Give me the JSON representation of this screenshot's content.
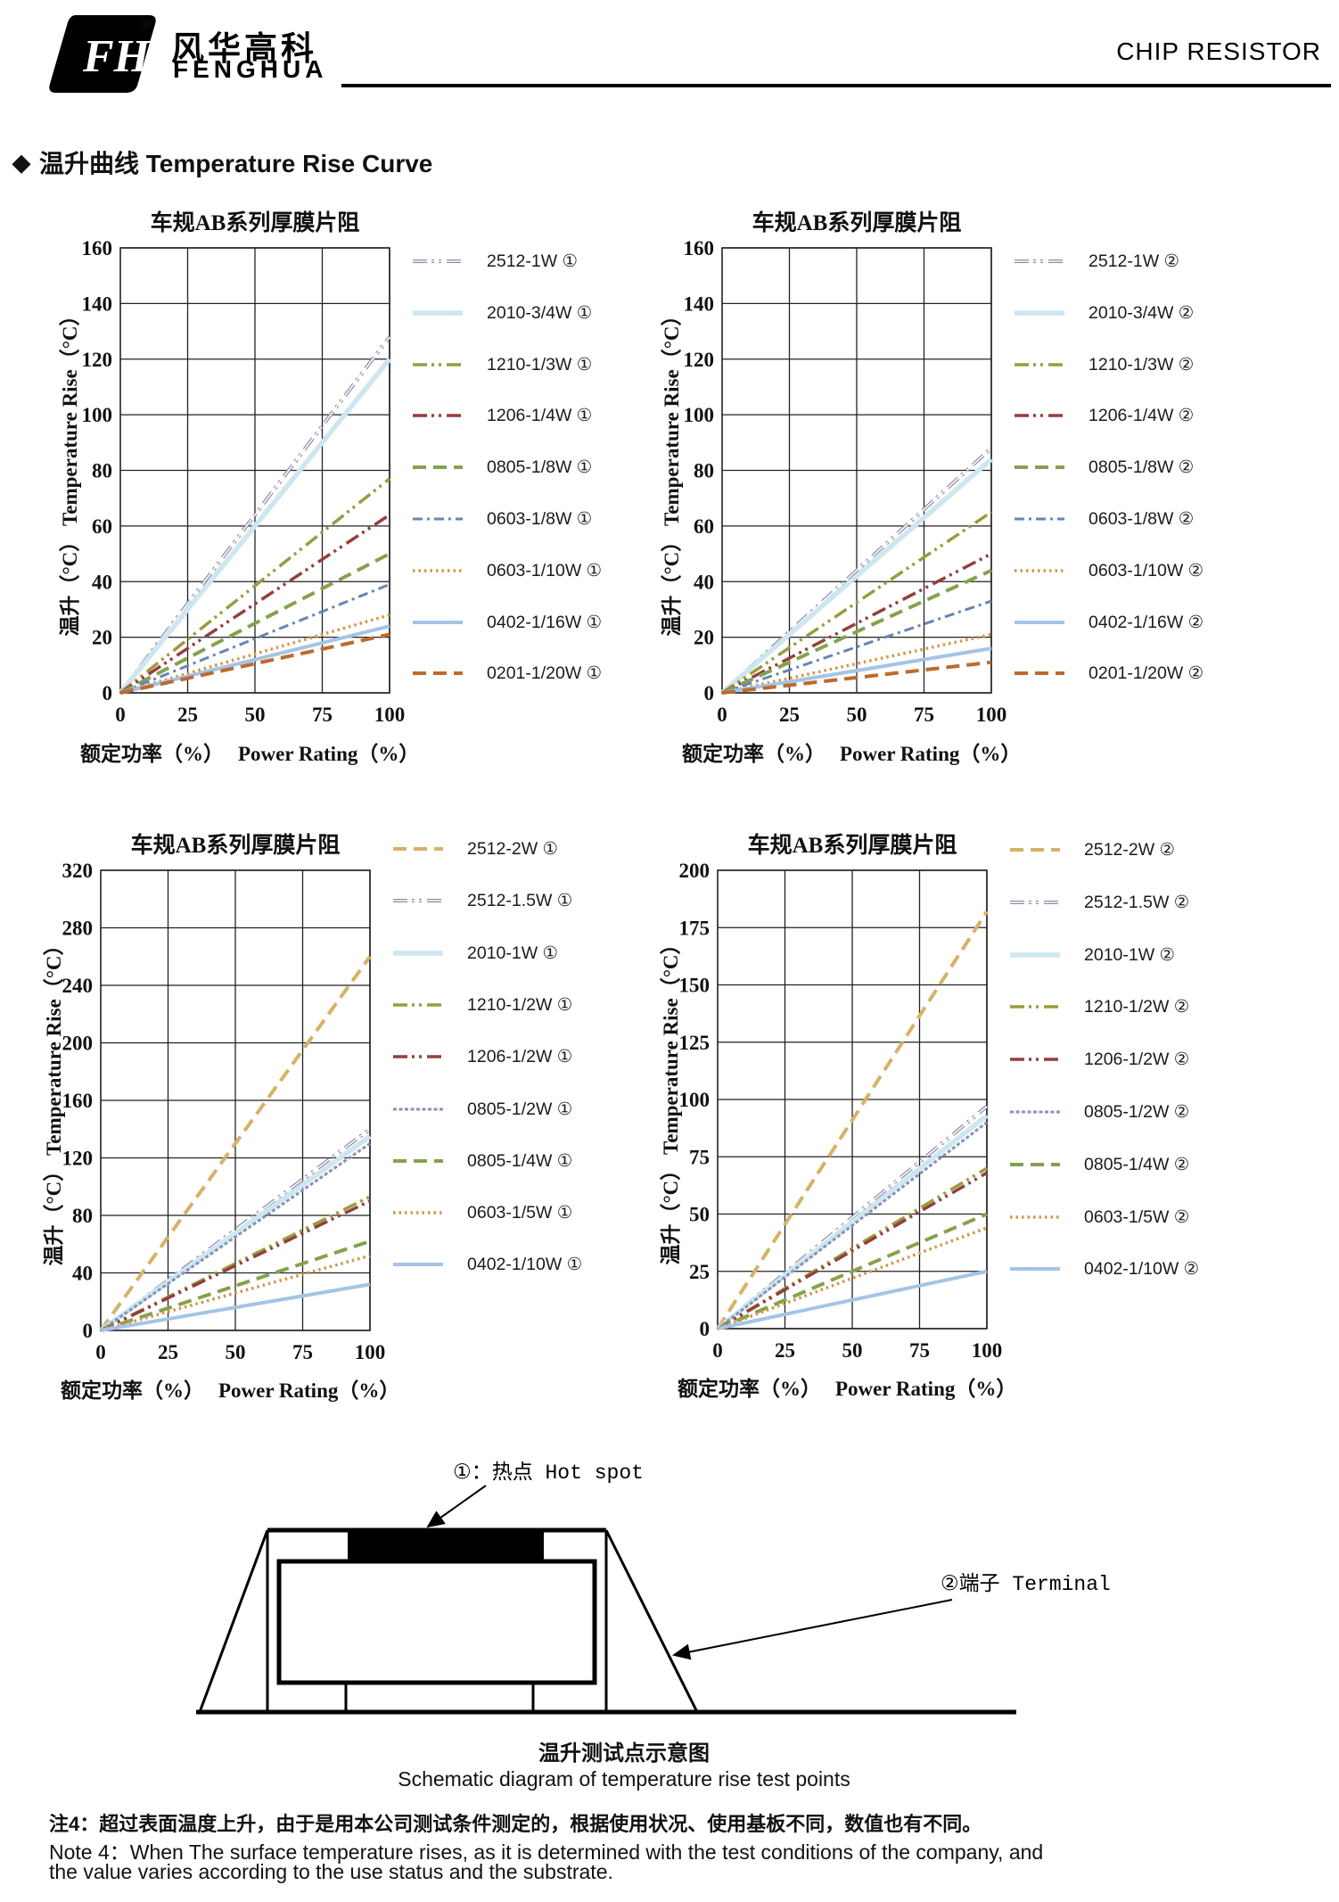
{
  "header": {
    "logo_monogram": "FH",
    "registered_mark": "®",
    "logo_cn": "风华高科",
    "logo_en": "FENGHUA",
    "doc_title": "CHIP RESISTOR"
  },
  "section": {
    "bullet": "◆",
    "title": "温升曲线 Temperature Rise Curve"
  },
  "chart_data": [
    {
      "type": "line",
      "title": "车规AB系列厚膜片阻",
      "xlabel_cn": "额定功率（%）",
      "xlabel_en": "Power Rating（%）",
      "ylabel": "温升（°C）  Temperature Rise（°C）",
      "x": [
        0,
        100
      ],
      "xticks": [
        "0",
        "25",
        "50",
        "75",
        "100"
      ],
      "yticks": [
        0,
        20,
        40,
        60,
        80,
        100,
        120,
        140,
        160
      ],
      "ylim": [
        0,
        160
      ],
      "grid": true,
      "legend_position": "right",
      "series": [
        {
          "name": "2512-1W ①",
          "color": "#8d8aa6",
          "style": "grayddd",
          "values": [
            0,
            128
          ]
        },
        {
          "name": "2010-3/4W ①",
          "color": "#cde6f0",
          "style": "pale",
          "values": [
            0,
            120
          ]
        },
        {
          "name": "1210-1/3W ①",
          "color": "#9b9b3f",
          "style": "ddd",
          "values": [
            0,
            77
          ]
        },
        {
          "name": "1206-1/4W ①",
          "color": "#943f3d",
          "style": "ddd",
          "values": [
            0,
            64
          ]
        },
        {
          "name": "0805-1/8W ①",
          "color": "#85a24b",
          "style": "dash",
          "values": [
            0,
            50
          ]
        },
        {
          "name": "0603-1/8W ①",
          "color": "#6486b8",
          "style": "dashdot",
          "values": [
            0,
            39
          ]
        },
        {
          "name": "0603-1/10W ①",
          "color": "#d3954a",
          "style": "dot",
          "values": [
            0,
            28
          ]
        },
        {
          "name": "0402-1/16W ①",
          "color": "#a5c4e6",
          "style": "solid",
          "values": [
            0,
            24
          ]
        },
        {
          "name": "0201-1/20W ①",
          "color": "#bd6a2e",
          "style": "dash",
          "values": [
            0,
            21
          ]
        }
      ]
    },
    {
      "type": "line",
      "title": "车规AB系列厚膜片阻",
      "xlabel_cn": "额定功率（%）",
      "xlabel_en": "Power Rating（%）",
      "ylabel": "温升（°C）  Temperature Rise（°C）",
      "x": [
        0,
        100
      ],
      "xticks": [
        "0",
        "25",
        "50",
        "75",
        "100"
      ],
      "yticks": [
        0,
        20,
        40,
        60,
        80,
        100,
        120,
        140,
        160
      ],
      "ylim": [
        0,
        160
      ],
      "grid": true,
      "legend_position": "right",
      "series": [
        {
          "name": "2512-1W ②",
          "color": "#8d8aa6",
          "style": "grayddd",
          "values": [
            0,
            88
          ]
        },
        {
          "name": "2010-3/4W ②",
          "color": "#cde6f0",
          "style": "pale",
          "values": [
            0,
            84
          ]
        },
        {
          "name": "1210-1/3W ②",
          "color": "#9b9b3f",
          "style": "ddd",
          "values": [
            0,
            65
          ]
        },
        {
          "name": "1206-1/4W ②",
          "color": "#943f3d",
          "style": "ddd",
          "values": [
            0,
            50
          ]
        },
        {
          "name": "0805-1/8W ②",
          "color": "#85a24b",
          "style": "dash",
          "values": [
            0,
            44
          ]
        },
        {
          "name": "0603-1/8W ②",
          "color": "#6486b8",
          "style": "dashdot",
          "values": [
            0,
            33
          ]
        },
        {
          "name": "0603-1/10W ②",
          "color": "#d3954a",
          "style": "dot",
          "values": [
            0,
            21
          ]
        },
        {
          "name": "0402-1/16W ②",
          "color": "#a5c4e6",
          "style": "solid",
          "values": [
            0,
            16
          ]
        },
        {
          "name": "0201-1/20W ②",
          "color": "#bd6a2e",
          "style": "dash",
          "values": [
            0,
            11
          ]
        }
      ]
    },
    {
      "type": "line",
      "title": "车规AB系列厚膜片阻",
      "xlabel_cn": "额定功率（%）",
      "xlabel_en": "Power Rating（%）",
      "ylabel": "温升（°C）  Temperature Rise（°C）",
      "x": [
        0,
        100
      ],
      "xticks": [
        "0",
        "25",
        "50",
        "75",
        "100"
      ],
      "yticks": [
        0,
        40,
        80,
        120,
        160,
        200,
        240,
        280,
        320
      ],
      "ylim": [
        0,
        320
      ],
      "grid": true,
      "legend_position": "right",
      "series": [
        {
          "name": "2512-2W ①",
          "color": "#d6b267",
          "style": "dash",
          "values": [
            0,
            260
          ]
        },
        {
          "name": "2512-1.5W ①",
          "color": "#8d8aa6",
          "style": "grayddd",
          "values": [
            0,
            140
          ]
        },
        {
          "name": "2010-1W ①",
          "color": "#cde6f0",
          "style": "pale",
          "values": [
            0,
            135
          ]
        },
        {
          "name": "1210-1/2W ①",
          "color": "#9b9b3f",
          "style": "ddd",
          "values": [
            0,
            93
          ]
        },
        {
          "name": "1206-1/2W ①",
          "color": "#943f3d",
          "style": "ddd",
          "values": [
            0,
            90
          ]
        },
        {
          "name": "0805-1/2W ①",
          "color": "#8493ba",
          "style": "densedot",
          "values": [
            0,
            130
          ]
        },
        {
          "name": "0805-1/4W ①",
          "color": "#85a24b",
          "style": "dash",
          "values": [
            0,
            62
          ]
        },
        {
          "name": "0603-1/5W ①",
          "color": "#d3954a",
          "style": "dot",
          "values": [
            0,
            52
          ]
        },
        {
          "name": "0402-1/10W ①",
          "color": "#a5c4e6",
          "style": "solid",
          "values": [
            0,
            32
          ]
        }
      ]
    },
    {
      "type": "line",
      "title": "车规AB系列厚膜片阻",
      "xlabel_cn": "额定功率（%）",
      "xlabel_en": "Power Rating（%）",
      "ylabel": "温升（°C）  Temperature Rise（°C）",
      "x": [
        0,
        100
      ],
      "xticks": [
        "0",
        "25",
        "50",
        "75",
        "100"
      ],
      "yticks": [
        0,
        25,
        50,
        75,
        100,
        125,
        150,
        175,
        200
      ],
      "ylim": [
        0,
        200
      ],
      "grid": true,
      "legend_position": "right",
      "series": [
        {
          "name": "2512-2W ②",
          "color": "#d6b267",
          "style": "dash",
          "values": [
            0,
            182
          ]
        },
        {
          "name": "2512-1.5W ②",
          "color": "#8d8aa6",
          "style": "grayddd",
          "values": [
            0,
            97
          ]
        },
        {
          "name": "2010-1W ②",
          "color": "#cde6f0",
          "style": "pale",
          "values": [
            0,
            93
          ]
        },
        {
          "name": "1210-1/2W ②",
          "color": "#9b9b3f",
          "style": "ddd",
          "values": [
            0,
            70
          ]
        },
        {
          "name": "1206-1/2W ②",
          "color": "#943f3d",
          "style": "ddd",
          "values": [
            0,
            68
          ]
        },
        {
          "name": "0805-1/2W ②",
          "color": "#8493ba",
          "style": "densedot",
          "values": [
            0,
            90
          ]
        },
        {
          "name": "0805-1/4W ②",
          "color": "#85a24b",
          "style": "dash",
          "values": [
            0,
            50
          ]
        },
        {
          "name": "0603-1/5W ②",
          "color": "#d3954a",
          "style": "dot",
          "values": [
            0,
            44
          ]
        },
        {
          "name": "0402-1/10W ②",
          "color": "#a5c4e6",
          "style": "solid",
          "values": [
            0,
            25
          ]
        }
      ]
    }
  ],
  "schematic": {
    "hotspot_label": "①：热点  Hot spot",
    "terminal_label": "②端子 Terminal",
    "caption_cn": "温升测试点示意图",
    "caption_en": "Schematic diagram of temperature rise test points"
  },
  "notes": {
    "cn": "注4：超过表面温度上升，由于是用本公司测试条件测定的，根据使用状况、使用基板不同，数值也有不同。",
    "en_line1": "Note 4：When The surface temperature rises, as it is determined with the test conditions of the company, and",
    "en_line2": "the value varies according to the use status and the substrate."
  }
}
